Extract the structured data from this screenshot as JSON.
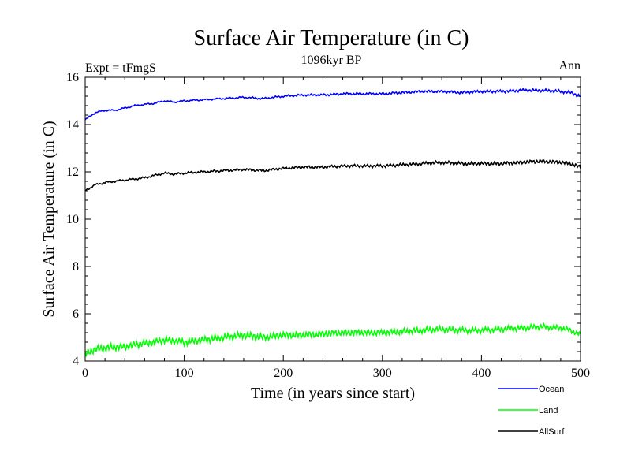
{
  "chart_data": {
    "type": "line",
    "title": "Surface Air Temperature (in C)",
    "subtitle": "1096kyr BP",
    "left_label": "Expt = tFmgS",
    "right_label": "Ann",
    "xlabel": "Time (in years since start)",
    "ylabel": "Surface Air Temperature (in C)",
    "xlim": [
      0,
      500
    ],
    "ylim": [
      4,
      16
    ],
    "xticks": [
      0,
      100,
      200,
      300,
      400,
      500
    ],
    "yticks": [
      4,
      6,
      8,
      10,
      12,
      14,
      16
    ],
    "grid": false,
    "legend_position": "bottom-right",
    "series": [
      {
        "name": "Ocean",
        "color": "#0000ff",
        "x": [
          0,
          10,
          20,
          30,
          40,
          50,
          60,
          70,
          80,
          90,
          100,
          120,
          140,
          160,
          180,
          200,
          220,
          240,
          260,
          280,
          300,
          320,
          340,
          360,
          380,
          400,
          420,
          440,
          460,
          480,
          490,
          500
        ],
        "values": [
          14.2,
          14.5,
          14.6,
          14.6,
          14.7,
          14.8,
          14.85,
          14.9,
          15.0,
          14.95,
          15.0,
          15.05,
          15.1,
          15.15,
          15.1,
          15.2,
          15.25,
          15.25,
          15.3,
          15.3,
          15.3,
          15.35,
          15.4,
          15.4,
          15.35,
          15.4,
          15.4,
          15.45,
          15.45,
          15.4,
          15.35,
          15.2
        ]
      },
      {
        "name": "Land",
        "color": "#00ff00",
        "x": [
          0,
          10,
          20,
          30,
          40,
          50,
          60,
          70,
          80,
          90,
          100,
          120,
          140,
          160,
          180,
          200,
          220,
          240,
          260,
          280,
          300,
          320,
          340,
          360,
          380,
          400,
          420,
          440,
          460,
          480,
          490,
          500
        ],
        "values": [
          4.3,
          4.5,
          4.55,
          4.6,
          4.6,
          4.7,
          4.75,
          4.8,
          4.9,
          4.85,
          4.8,
          4.9,
          5.0,
          5.1,
          5.0,
          5.1,
          5.1,
          5.15,
          5.2,
          5.2,
          5.2,
          5.25,
          5.3,
          5.35,
          5.3,
          5.3,
          5.35,
          5.4,
          5.45,
          5.4,
          5.3,
          5.1
        ]
      },
      {
        "name": "AllSurf",
        "color": "#000000",
        "x": [
          0,
          10,
          20,
          30,
          40,
          50,
          60,
          70,
          80,
          90,
          100,
          120,
          140,
          160,
          180,
          200,
          220,
          240,
          260,
          280,
          300,
          320,
          340,
          360,
          380,
          400,
          420,
          440,
          460,
          480,
          490,
          500
        ],
        "values": [
          11.2,
          11.45,
          11.55,
          11.6,
          11.65,
          11.7,
          11.75,
          11.85,
          11.95,
          11.9,
          11.95,
          12.0,
          12.05,
          12.1,
          12.05,
          12.15,
          12.2,
          12.2,
          12.25,
          12.25,
          12.25,
          12.3,
          12.35,
          12.4,
          12.35,
          12.35,
          12.35,
          12.4,
          12.45,
          12.4,
          12.35,
          12.2
        ]
      }
    ]
  }
}
